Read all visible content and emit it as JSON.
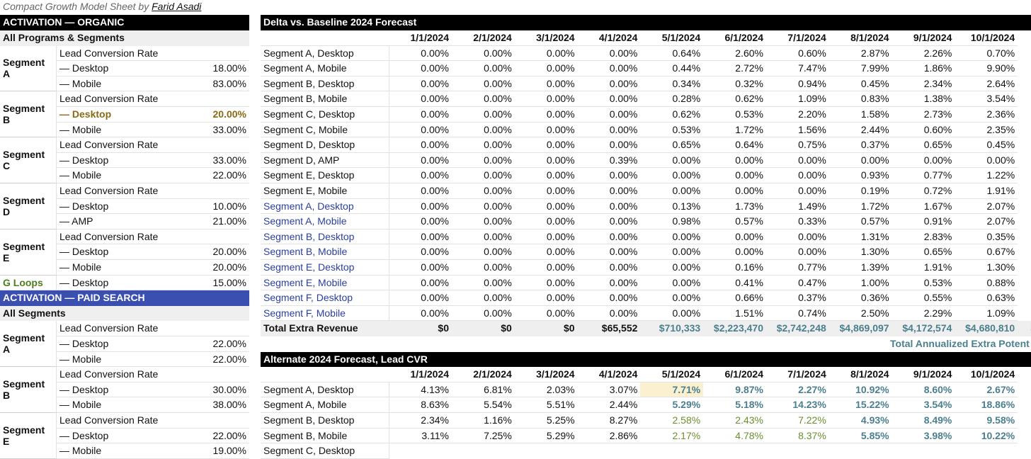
{
  "caption": {
    "text": "Compact Growth Model Sheet by",
    "author": "Farid Asadi"
  },
  "left": {
    "sections": [
      {
        "title": "ACTIVATION — ORGANIC",
        "subtitle": "All Programs & Segments",
        "groups": [
          {
            "segment": "Segment A",
            "header": "Lead Conversion Rate",
            "rows": [
              [
                "— Desktop",
                "18.00%"
              ],
              [
                "— Mobile",
                "83.00%"
              ]
            ]
          },
          {
            "segment": "Segment B",
            "header": "Lead Conversion Rate",
            "rows": [
              [
                "— Desktop",
                "20.00%"
              ],
              [
                "— Mobile",
                "33.00%"
              ]
            ]
          },
          {
            "segment": "Segment C",
            "header": "Lead Conversion Rate",
            "rows": [
              [
                "— Desktop",
                "33.00%"
              ],
              [
                "— Mobile",
                "22.00%"
              ]
            ]
          },
          {
            "segment": "Segment D",
            "header": "Lead Conversion Rate",
            "rows": [
              [
                "— Desktop",
                "10.00%"
              ],
              [
                "— AMP",
                "21.00%"
              ]
            ]
          },
          {
            "segment": "Segment E",
            "header": "Lead Conversion Rate",
            "rows": [
              [
                "— Desktop",
                "20.00%"
              ],
              [
                "— Mobile",
                "20.00%"
              ]
            ]
          },
          {
            "segment": "G Loops",
            "rows": [
              [
                "— Desktop",
                "15.00%"
              ]
            ]
          }
        ]
      },
      {
        "title": "ACTIVATION — PAID SEARCH",
        "subtitle": "All Segments",
        "groups": [
          {
            "segment": "Segment A",
            "header": "Lead Conversion Rate",
            "rows": [
              [
                "— Desktop",
                "22.00%"
              ],
              [
                "— Mobile",
                "22.00%"
              ]
            ]
          },
          {
            "segment": "Segment B",
            "header": "Lead Conversion Rate",
            "rows": [
              [
                "— Desktop",
                "30.00%"
              ],
              [
                "— Mobile",
                "38.00%"
              ]
            ]
          },
          {
            "segment": "Segment E",
            "header": "Lead Conversion Rate",
            "rows": [
              [
                "— Desktop",
                "22.00%"
              ],
              [
                "— Mobile",
                "19.00%"
              ]
            ]
          }
        ]
      }
    ]
  },
  "right": {
    "tables": [
      {
        "title": "Delta vs. Baseline 2024 Forecast",
        "dates": [
          "1/1/2024",
          "2/1/2024",
          "3/1/2024",
          "4/1/2024",
          "5/1/2024",
          "6/1/2024",
          "7/1/2024",
          "8/1/2024",
          "9/1/2024",
          "10/1/2024"
        ],
        "rows": [
          {
            "label": "Segment A, Desktop",
            "values": [
              "0.00%",
              "0.00%",
              "0.00%",
              "0.00%",
              "0.64%",
              "2.60%",
              "0.60%",
              "2.87%",
              "2.26%",
              "0.70%"
            ]
          },
          {
            "label": "Segment A, Mobile",
            "values": [
              "0.00%",
              "0.00%",
              "0.00%",
              "0.00%",
              "0.44%",
              "2.72%",
              "7.47%",
              "7.99%",
              "1.86%",
              "9.90%"
            ]
          },
          {
            "label": "Segment B, Desktop",
            "values": [
              "0.00%",
              "0.00%",
              "0.00%",
              "0.00%",
              "0.34%",
              "0.32%",
              "0.94%",
              "0.45%",
              "2.34%",
              "2.64%"
            ]
          },
          {
            "label": "Segment B, Mobile",
            "values": [
              "0.00%",
              "0.00%",
              "0.00%",
              "0.00%",
              "0.28%",
              "0.62%",
              "1.09%",
              "0.83%",
              "1.38%",
              "3.54%"
            ]
          },
          {
            "label": "Segment C, Desktop",
            "values": [
              "0.00%",
              "0.00%",
              "0.00%",
              "0.00%",
              "0.62%",
              "0.53%",
              "2.20%",
              "1.58%",
              "2.73%",
              "2.36%"
            ]
          },
          {
            "label": "Segment C, Mobile",
            "values": [
              "0.00%",
              "0.00%",
              "0.00%",
              "0.00%",
              "0.53%",
              "1.72%",
              "1.56%",
              "2.44%",
              "0.60%",
              "2.35%"
            ]
          },
          {
            "label": "Segment D, Desktop",
            "values": [
              "0.00%",
              "0.00%",
              "0.00%",
              "0.00%",
              "0.65%",
              "0.64%",
              "0.75%",
              "0.37%",
              "0.65%",
              "0.45%"
            ]
          },
          {
            "label": "Segment D, AMP",
            "values": [
              "0.00%",
              "0.00%",
              "0.00%",
              "0.39%",
              "0.00%",
              "0.00%",
              "0.00%",
              "0.00%",
              "0.00%",
              "0.00%"
            ]
          },
          {
            "label": "Segment E, Desktop",
            "values": [
              "0.00%",
              "0.00%",
              "0.00%",
              "0.00%",
              "0.00%",
              "0.00%",
              "0.00%",
              "0.93%",
              "0.77%",
              "1.22%"
            ]
          },
          {
            "label": "Segment E, Mobile",
            "values": [
              "0.00%",
              "0.00%",
              "0.00%",
              "0.00%",
              "0.00%",
              "0.00%",
              "0.00%",
              "0.19%",
              "0.72%",
              "1.91%"
            ]
          },
          {
            "label": "Segment A, Desktop",
            "values": [
              "0.00%",
              "0.00%",
              "0.00%",
              "0.00%",
              "0.13%",
              "1.73%",
              "1.49%",
              "1.72%",
              "1.67%",
              "2.07%"
            ]
          },
          {
            "label": "Segment A, Mobile",
            "values": [
              "0.00%",
              "0.00%",
              "0.00%",
              "0.00%",
              "0.98%",
              "0.57%",
              "0.33%",
              "0.57%",
              "0.91%",
              "2.07%"
            ]
          },
          {
            "label": "Segment B, Desktop",
            "values": [
              "0.00%",
              "0.00%",
              "0.00%",
              "0.00%",
              "0.00%",
              "0.00%",
              "0.00%",
              "1.31%",
              "2.83%",
              "0.35%"
            ]
          },
          {
            "label": "Segment B, Mobile",
            "values": [
              "0.00%",
              "0.00%",
              "0.00%",
              "0.00%",
              "0.00%",
              "0.00%",
              "0.00%",
              "1.30%",
              "0.65%",
              "0.67%"
            ]
          },
          {
            "label": "Segment E, Desktop",
            "values": [
              "0.00%",
              "0.00%",
              "0.00%",
              "0.00%",
              "0.00%",
              "0.16%",
              "0.77%",
              "1.39%",
              "1.91%",
              "1.30%"
            ]
          },
          {
            "label": "Segment E, Mobile",
            "values": [
              "0.00%",
              "0.00%",
              "0.00%",
              "0.00%",
              "0.00%",
              "0.41%",
              "0.47%",
              "1.00%",
              "0.53%",
              "0.88%"
            ]
          },
          {
            "label": "Segment F, Desktop",
            "values": [
              "0.00%",
              "0.00%",
              "0.00%",
              "0.00%",
              "0.00%",
              "0.66%",
              "0.37%",
              "0.36%",
              "0.55%",
              "0.63%"
            ]
          },
          {
            "label": "Segment F, Mobile",
            "values": [
              "0.00%",
              "0.00%",
              "0.00%",
              "0.00%",
              "0.00%",
              "1.51%",
              "0.74%",
              "2.50%",
              "2.29%",
              "1.09%"
            ]
          }
        ],
        "total": {
          "label": "Total Extra Revenue",
          "values": [
            "$0",
            "$0",
            "$0",
            "$65,552",
            "$710,333",
            "$2,223,470",
            "$2,742,248",
            "$4,869,097",
            "$4,172,574",
            "$4,680,810",
            "$"
          ]
        },
        "note": "Total Annualized Extra Potent"
      },
      {
        "title": "Alternate 2024 Forecast, Lead CVR",
        "dates": [
          "1/1/2024",
          "2/1/2024",
          "3/1/2024",
          "4/1/2024",
          "5/1/2024",
          "6/1/2024",
          "7/1/2024",
          "8/1/2024",
          "9/1/2024",
          "10/1/2024"
        ],
        "rows": [
          {
            "label": "Segment A, Desktop",
            "values": [
              "4.13%",
              "6.81%",
              "2.03%",
              "3.07%",
              "7.71%",
              "9.87%",
              "2.27%",
              "10.92%",
              "8.60%",
              "2.67%"
            ]
          },
          {
            "label": "Segment A, Mobile",
            "values": [
              "8.63%",
              "5.54%",
              "5.51%",
              "2.44%",
              "5.29%",
              "5.18%",
              "14.23%",
              "15.22%",
              "3.54%",
              "18.86%"
            ]
          },
          {
            "label": "Segment B, Desktop",
            "values": [
              "2.34%",
              "1.16%",
              "5.25%",
              "8.27%",
              "2.58%",
              "2.43%",
              "7.22%",
              "4.93%",
              "8.49%",
              "9.58%"
            ]
          },
          {
            "label": "Segment B, Mobile",
            "values": [
              "3.11%",
              "7.25%",
              "5.29%",
              "2.86%",
              "2.17%",
              "4.78%",
              "8.37%",
              "5.85%",
              "3.98%",
              "10.22%"
            ]
          },
          {
            "label": "Segment C, Desktop",
            "values": []
          }
        ]
      }
    ]
  }
}
